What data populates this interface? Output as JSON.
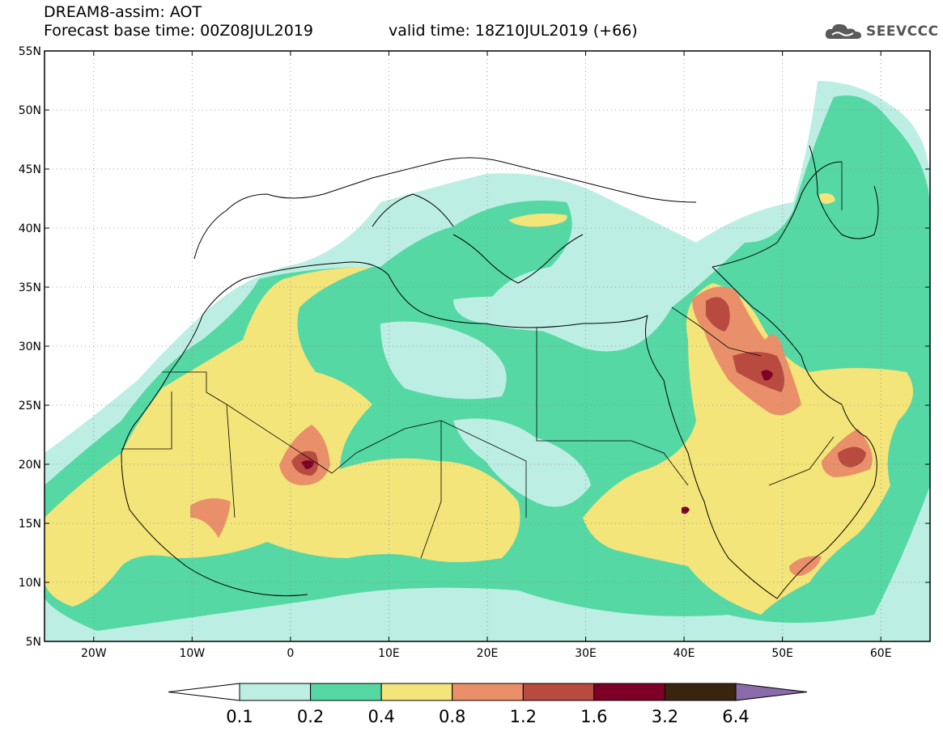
{
  "header": {
    "title": "DREAM8-assim: AOT",
    "base_time": "Forecast base time: 00Z08JUL2019",
    "valid_time": "valid time: 18Z10JUL2019 (+66)"
  },
  "logo": {
    "text": "SEEVCCC",
    "icon": "cloud-icon"
  },
  "map": {
    "lon_range": [
      -25,
      65
    ],
    "lat_range": [
      5,
      55
    ],
    "lat_ticks": [
      {
        "value": 55,
        "label": "55N"
      },
      {
        "value": 50,
        "label": "50N"
      },
      {
        "value": 45,
        "label": "45N"
      },
      {
        "value": 40,
        "label": "40N"
      },
      {
        "value": 35,
        "label": "35N"
      },
      {
        "value": 30,
        "label": "30N"
      },
      {
        "value": 25,
        "label": "25N"
      },
      {
        "value": 20,
        "label": "20N"
      },
      {
        "value": 15,
        "label": "15N"
      },
      {
        "value": 10,
        "label": "10N"
      },
      {
        "value": 5,
        "label": "5N"
      }
    ],
    "lon_ticks": [
      {
        "value": -20,
        "label": "20W"
      },
      {
        "value": -10,
        "label": "10W"
      },
      {
        "value": 0,
        "label": "0"
      },
      {
        "value": 10,
        "label": "10E"
      },
      {
        "value": 20,
        "label": "20E"
      },
      {
        "value": 30,
        "label": "30E"
      },
      {
        "value": 40,
        "label": "40E"
      },
      {
        "value": 50,
        "label": "50E"
      },
      {
        "value": 60,
        "label": "60E"
      }
    ],
    "grid": true
  },
  "colorbar": {
    "levels": [
      "0.1",
      "0.2",
      "0.4",
      "0.8",
      "1.2",
      "1.6",
      "3.2",
      "6.4"
    ],
    "colors": [
      "#ffffff",
      "#bdeee3",
      "#55d8a4",
      "#f3e57a",
      "#e9906a",
      "#b84a40",
      "#7e0026",
      "#3a2410",
      "#8a6aa8"
    ]
  }
}
